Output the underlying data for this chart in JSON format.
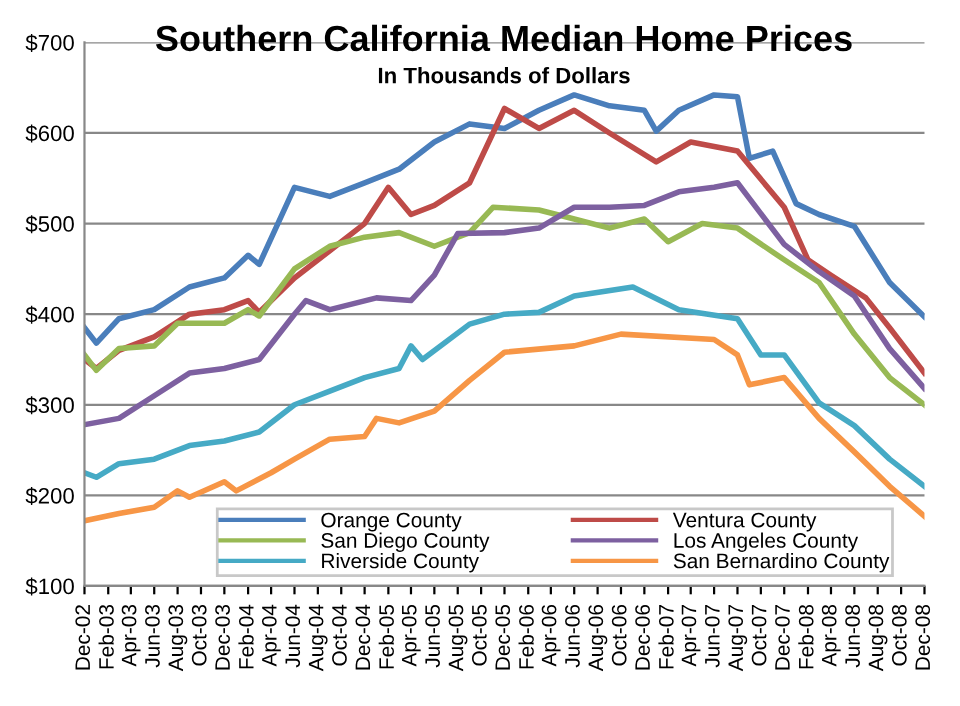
{
  "chart_data": {
    "type": "line",
    "title": "Southern California Median Home Prices",
    "subtitle": "In Thousands of Dollars",
    "series": [
      {
        "name": "Orange County",
        "color": "#4a7ebb",
        "x": [
          "2002-12",
          "2003-01",
          "2003-03",
          "2003-06",
          "2003-09",
          "2003-12",
          "2004-02",
          "2004-03",
          "2004-06",
          "2004-09",
          "2004-12",
          "2005-03",
          "2005-06",
          "2005-09",
          "2005-12",
          "2006-03",
          "2006-06",
          "2006-09",
          "2006-12",
          "2007-01",
          "2007-03",
          "2007-06",
          "2007-08",
          "2007-09",
          "2007-11",
          "2008-01",
          "2008-03",
          "2008-06",
          "2008-09",
          "2008-12"
        ],
        "values": [
          385,
          368,
          395,
          405,
          430,
          440,
          465,
          455,
          540,
          530,
          545,
          560,
          590,
          610,
          605,
          625,
          642,
          630,
          625,
          602,
          625,
          642,
          640,
          572,
          580,
          522,
          510,
          497,
          435,
          397
        ]
      },
      {
        "name": "Ventura County",
        "color": "#be4b48",
        "x": [
          "2002-12",
          "2003-01",
          "2003-03",
          "2003-06",
          "2003-09",
          "2003-12",
          "2004-02",
          "2004-03",
          "2004-06",
          "2004-09",
          "2004-12",
          "2005-02",
          "2005-04",
          "2005-06",
          "2005-09",
          "2005-12",
          "2006-03",
          "2006-06",
          "2006-09",
          "2007-01",
          "2007-04",
          "2007-08",
          "2007-12",
          "2008-02",
          "2008-04",
          "2008-07",
          "2008-09",
          "2008-12"
        ],
        "values": [
          350,
          340,
          360,
          375,
          400,
          405,
          415,
          402,
          440,
          470,
          500,
          540,
          510,
          520,
          545,
          627,
          605,
          625,
          600,
          568,
          590,
          580,
          518,
          460,
          443,
          418,
          385,
          335
        ]
      },
      {
        "name": "San Diego County",
        "color": "#98b954",
        "x": [
          "2002-12",
          "2003-01",
          "2003-03",
          "2003-06",
          "2003-08",
          "2003-12",
          "2004-02",
          "2004-03",
          "2004-06",
          "2004-09",
          "2004-12",
          "2005-03",
          "2005-06",
          "2005-09",
          "2005-11",
          "2006-03",
          "2006-06",
          "2006-09",
          "2006-12",
          "2007-02",
          "2007-05",
          "2007-08",
          "2007-12",
          "2008-03",
          "2008-06",
          "2008-09",
          "2008-12"
        ],
        "values": [
          355,
          338,
          362,
          365,
          390,
          390,
          405,
          398,
          450,
          475,
          485,
          490,
          475,
          490,
          518,
          515,
          505,
          495,
          505,
          480,
          500,
          495,
          460,
          435,
          378,
          330,
          300
        ]
      },
      {
        "name": "Los Angeles County",
        "color": "#7d60a0",
        "x": [
          "2002-12",
          "2003-03",
          "2003-06",
          "2003-09",
          "2003-12",
          "2004-03",
          "2004-06",
          "2004-07",
          "2004-09",
          "2005-01",
          "2005-04",
          "2005-06",
          "2005-08",
          "2005-12",
          "2006-03",
          "2006-06",
          "2006-09",
          "2006-12",
          "2007-03",
          "2007-06",
          "2007-08",
          "2007-12",
          "2008-03",
          "2008-06",
          "2008-09",
          "2008-12"
        ],
        "values": [
          278,
          285,
          310,
          335,
          340,
          350,
          400,
          415,
          405,
          418,
          415,
          443,
          489,
          490,
          495,
          518,
          518,
          520,
          535,
          540,
          545,
          477,
          447,
          420,
          362,
          318
        ]
      },
      {
        "name": "Riverside County",
        "color": "#46aac5",
        "x": [
          "2002-12",
          "2003-01",
          "2003-03",
          "2003-06",
          "2003-09",
          "2003-12",
          "2004-03",
          "2004-06",
          "2004-09",
          "2004-12",
          "2005-03",
          "2005-04",
          "2005-05",
          "2005-09",
          "2005-12",
          "2006-03",
          "2006-06",
          "2006-11",
          "2007-03",
          "2007-08",
          "2007-10",
          "2007-12",
          "2008-03",
          "2008-06",
          "2008-09",
          "2008-12"
        ],
        "values": [
          225,
          220,
          235,
          240,
          255,
          260,
          270,
          300,
          315,
          330,
          340,
          365,
          350,
          389,
          400,
          402,
          420,
          430,
          405,
          395,
          355,
          355,
          302,
          277,
          240,
          210
        ]
      },
      {
        "name": "San Bernardino County",
        "color": "#f79646",
        "x": [
          "2002-12",
          "2003-03",
          "2003-06",
          "2003-08",
          "2003-09",
          "2003-12",
          "2004-01",
          "2004-04",
          "2004-06",
          "2004-09",
          "2004-12",
          "2005-01",
          "2005-03",
          "2005-06",
          "2005-09",
          "2005-12",
          "2006-06",
          "2006-10",
          "2007-06",
          "2007-08",
          "2007-09",
          "2007-12",
          "2008-03",
          "2008-06",
          "2008-09",
          "2008-12"
        ],
        "values": [
          172,
          180,
          187,
          205,
          198,
          215,
          205,
          225,
          240,
          262,
          265,
          285,
          280,
          293,
          327,
          358,
          365,
          378,
          372,
          355,
          322,
          330,
          285,
          248,
          210,
          177
        ]
      }
    ],
    "ylim": [
      100,
      700
    ],
    "yticks": [
      {
        "value": 100,
        "label": "$100"
      },
      {
        "value": 200,
        "label": "$200"
      },
      {
        "value": 300,
        "label": "$300"
      },
      {
        "value": 400,
        "label": "$400"
      },
      {
        "value": 500,
        "label": "$500"
      },
      {
        "value": 600,
        "label": "$600"
      },
      {
        "value": 700,
        "label": "$700"
      }
    ],
    "xlim": [
      "2002-12",
      "2008-12"
    ],
    "xticks": [
      {
        "value": "2002-12",
        "label": "Dec-02"
      },
      {
        "value": "2003-02",
        "label": "Feb-03"
      },
      {
        "value": "2003-04",
        "label": "Apr-03"
      },
      {
        "value": "2003-06",
        "label": "Jun-03"
      },
      {
        "value": "2003-08",
        "label": "Aug-03"
      },
      {
        "value": "2003-10",
        "label": "Oct-03"
      },
      {
        "value": "2003-12",
        "label": "Dec-03"
      },
      {
        "value": "2004-02",
        "label": "Feb-04"
      },
      {
        "value": "2004-04",
        "label": "Apr-04"
      },
      {
        "value": "2004-06",
        "label": "Jun-04"
      },
      {
        "value": "2004-08",
        "label": "Aug-04"
      },
      {
        "value": "2004-10",
        "label": "Oct-04"
      },
      {
        "value": "2004-12",
        "label": "Dec-04"
      },
      {
        "value": "2005-02",
        "label": "Feb-05"
      },
      {
        "value": "2005-04",
        "label": "Apr-05"
      },
      {
        "value": "2005-06",
        "label": "Jun-05"
      },
      {
        "value": "2005-08",
        "label": "Aug-05"
      },
      {
        "value": "2005-10",
        "label": "Oct-05"
      },
      {
        "value": "2005-12",
        "label": "Dec-05"
      },
      {
        "value": "2006-02",
        "label": "Feb-06"
      },
      {
        "value": "2006-04",
        "label": "Apr-06"
      },
      {
        "value": "2006-06",
        "label": "Jun-06"
      },
      {
        "value": "2006-08",
        "label": "Aug-06"
      },
      {
        "value": "2006-10",
        "label": "Oct-06"
      },
      {
        "value": "2006-12",
        "label": "Dec-06"
      },
      {
        "value": "2007-02",
        "label": "Feb-07"
      },
      {
        "value": "2007-04",
        "label": "Apr-07"
      },
      {
        "value": "2007-06",
        "label": "Jun-07"
      },
      {
        "value": "2007-08",
        "label": "Aug-07"
      },
      {
        "value": "2007-10",
        "label": "Oct-07"
      },
      {
        "value": "2007-12",
        "label": "Dec-07"
      },
      {
        "value": "2008-02",
        "label": "Feb-08"
      },
      {
        "value": "2008-04",
        "label": "Apr-08"
      },
      {
        "value": "2008-06",
        "label": "Jun-08"
      },
      {
        "value": "2008-08",
        "label": "Aug-08"
      },
      {
        "value": "2008-10",
        "label": "Oct-08"
      },
      {
        "value": "2008-12",
        "label": "Dec-08"
      }
    ],
    "grid": "y",
    "legend": "bottom",
    "marker": "none",
    "line_style": "solid"
  }
}
